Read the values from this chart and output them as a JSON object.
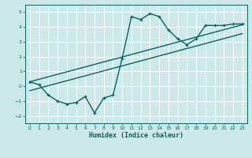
{
  "xlabel": "Humidex (Indice chaleur)",
  "ylabel": "",
  "bg_color": "#cce8e8",
  "grid_color": "#ffffff",
  "line_color": "#006666",
  "xlim": [
    -0.5,
    23.5
  ],
  "ylim": [
    -2.5,
    5.5
  ],
  "xticks": [
    0,
    1,
    2,
    3,
    4,
    5,
    6,
    7,
    8,
    9,
    10,
    11,
    12,
    13,
    14,
    15,
    16,
    17,
    18,
    19,
    20,
    21,
    22,
    23
  ],
  "yticks": [
    -2,
    -1,
    0,
    1,
    2,
    3,
    4,
    5
  ],
  "zigzag_x": [
    0,
    1,
    2,
    3,
    4,
    5,
    6,
    7,
    8,
    9,
    10,
    11,
    12,
    13,
    14,
    15,
    16,
    17,
    18,
    19,
    20,
    21,
    22,
    23
  ],
  "zigzag_y": [
    0.3,
    0.1,
    -0.6,
    -1.0,
    -1.2,
    -1.1,
    -0.7,
    -1.8,
    -0.8,
    -0.6,
    1.9,
    4.7,
    4.5,
    4.9,
    4.7,
    3.8,
    3.2,
    2.8,
    3.2,
    4.1,
    4.1,
    4.1,
    4.2,
    4.2
  ],
  "line1_x": [
    0,
    23
  ],
  "line1_y": [
    0.3,
    4.15
  ],
  "line2_x": [
    0,
    23
  ],
  "line2_y": [
    -0.3,
    3.55
  ],
  "marker_size": 3,
  "linewidth": 1.0
}
